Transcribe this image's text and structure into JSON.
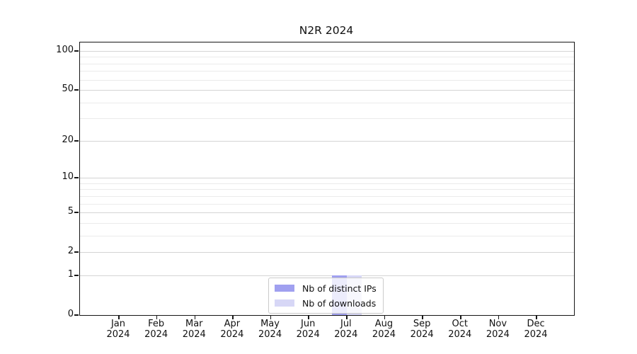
{
  "chart_data": {
    "type": "bar",
    "title": "N2R 2024",
    "categories": [
      "Jan",
      "Feb",
      "Mar",
      "Apr",
      "May",
      "Jun",
      "Jul",
      "Aug",
      "Sep",
      "Oct",
      "Nov",
      "Dec"
    ],
    "year_label": "2024",
    "series": [
      {
        "name": "Nb of distinct IPs",
        "color": "#a0a0f0",
        "values": [
          0,
          0,
          0,
          0,
          0,
          0,
          1,
          0,
          0,
          0,
          0,
          0
        ]
      },
      {
        "name": "Nb of downloads",
        "color": "#d7d7f6",
        "values": [
          0,
          0,
          0,
          0,
          0,
          0,
          1,
          0,
          0,
          0,
          0,
          0
        ]
      }
    ],
    "xlabel": "",
    "ylabel": "",
    "yticks": [
      0,
      1,
      2,
      5,
      10,
      20,
      50,
      100
    ],
    "yminor_ticks": [
      3,
      4,
      6,
      7,
      8,
      9,
      30,
      40,
      60,
      70,
      80,
      90
    ],
    "scale": "log1p",
    "ylim": [
      0,
      116
    ],
    "grid": true,
    "legend_position": "lower center"
  },
  "colors": {
    "major_grid": "#d4d4d4",
    "minor_grid": "#ebebeb",
    "spine": "#161616",
    "background": "#ffffff"
  }
}
